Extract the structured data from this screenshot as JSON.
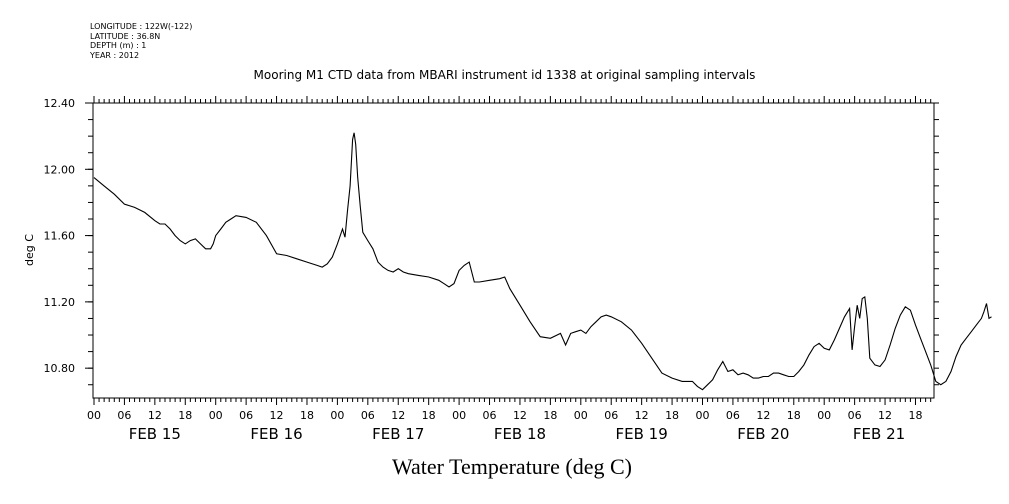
{
  "meta": {
    "longitude": "LONGITUDE : 122W(-122)",
    "latitude": "LATITUDE : 36.8N",
    "depth": "DEPTH (m) : 1",
    "year": "YEAR : 2012"
  },
  "chart_data": {
    "type": "line",
    "title": "Mooring M1 CTD data from MBARI instrument id 1338 at original sampling intervals",
    "xlabel": "Water Temperature (deg C)",
    "ylabel": "deg C",
    "ylim": [
      10.62,
      12.4
    ],
    "yticks": [
      10.8,
      11.2,
      11.6,
      12.0,
      12.4
    ],
    "ytick_labels": [
      "10.80",
      "11.20",
      "11.60",
      "12.00",
      "12.40"
    ],
    "xlim_hours": [
      0,
      165
    ],
    "hour_ticks": [
      "00",
      "06",
      "12",
      "18",
      "00",
      "06",
      "12",
      "18",
      "00",
      "06",
      "12",
      "18",
      "00",
      "06",
      "12",
      "18",
      "00",
      "06",
      "12",
      "18",
      "00",
      "06",
      "12",
      "18",
      "00",
      "06",
      "12",
      "18"
    ],
    "day_labels": [
      "FEB 15",
      "FEB 16",
      "FEB 17",
      "FEB 18",
      "FEB 19",
      "FEB 20",
      "FEB 21"
    ],
    "grid": false,
    "series": [
      {
        "color": "#000000",
        "points": [
          [
            0,
            11.95
          ],
          [
            2,
            11.9
          ],
          [
            4,
            11.85
          ],
          [
            6,
            11.79
          ],
          [
            8,
            11.77
          ],
          [
            10,
            11.74
          ],
          [
            12,
            11.69
          ],
          [
            13,
            11.67
          ],
          [
            14,
            11.67
          ],
          [
            15,
            11.64
          ],
          [
            16,
            11.6
          ],
          [
            17,
            11.57
          ],
          [
            18,
            11.55
          ],
          [
            19,
            11.57
          ],
          [
            20,
            11.58
          ],
          [
            21,
            11.55
          ],
          [
            22,
            11.52
          ],
          [
            23,
            11.52
          ],
          [
            23.5,
            11.55
          ],
          [
            24,
            11.6
          ],
          [
            25,
            11.64
          ],
          [
            26,
            11.68
          ],
          [
            27,
            11.7
          ],
          [
            28,
            11.72
          ],
          [
            30,
            11.71
          ],
          [
            32,
            11.68
          ],
          [
            34,
            11.6
          ],
          [
            36,
            11.49
          ],
          [
            38,
            11.48
          ],
          [
            40,
            11.46
          ],
          [
            42,
            11.44
          ],
          [
            44,
            11.42
          ],
          [
            45,
            11.41
          ],
          [
            46,
            11.43
          ],
          [
            47,
            11.47
          ],
          [
            48,
            11.55
          ],
          [
            49,
            11.64
          ],
          [
            49.5,
            11.59
          ],
          [
            50,
            11.75
          ],
          [
            50.5,
            11.9
          ],
          [
            51,
            12.18
          ],
          [
            51.3,
            12.22
          ],
          [
            51.6,
            12.15
          ],
          [
            52,
            11.95
          ],
          [
            52.5,
            11.78
          ],
          [
            53,
            11.62
          ],
          [
            54,
            11.57
          ],
          [
            55,
            11.52
          ],
          [
            56,
            11.44
          ],
          [
            57,
            11.41
          ],
          [
            58,
            11.39
          ],
          [
            59,
            11.38
          ],
          [
            60,
            11.4
          ],
          [
            61,
            11.38
          ],
          [
            62,
            11.37
          ],
          [
            64,
            11.36
          ],
          [
            66,
            11.35
          ],
          [
            68,
            11.33
          ],
          [
            69,
            11.31
          ],
          [
            70,
            11.29
          ],
          [
            71,
            11.31
          ],
          [
            72,
            11.39
          ],
          [
            73,
            11.42
          ],
          [
            74,
            11.44
          ],
          [
            75,
            11.32
          ],
          [
            76,
            11.32
          ],
          [
            78,
            11.33
          ],
          [
            80,
            11.34
          ],
          [
            81,
            11.35
          ],
          [
            82,
            11.28
          ],
          [
            84,
            11.18
          ],
          [
            86,
            11.08
          ],
          [
            88,
            10.99
          ],
          [
            90,
            10.98
          ],
          [
            92,
            11.01
          ],
          [
            93,
            10.94
          ],
          [
            94,
            11.01
          ],
          [
            95,
            11.02
          ],
          [
            96,
            11.03
          ],
          [
            97,
            11.01
          ],
          [
            98,
            11.05
          ],
          [
            99,
            11.08
          ],
          [
            100,
            11.11
          ],
          [
            101,
            11.12
          ],
          [
            102,
            11.11
          ],
          [
            104,
            11.08
          ],
          [
            106,
            11.03
          ],
          [
            108,
            10.95
          ],
          [
            110,
            10.86
          ],
          [
            112,
            10.77
          ],
          [
            114,
            10.74
          ],
          [
            116,
            10.72
          ],
          [
            118,
            10.72
          ],
          [
            119,
            10.69
          ],
          [
            120,
            10.67
          ],
          [
            121,
            10.7
          ],
          [
            122,
            10.73
          ],
          [
            123,
            10.79
          ],
          [
            124,
            10.84
          ],
          [
            125,
            10.78
          ],
          [
            126,
            10.79
          ],
          [
            127,
            10.76
          ],
          [
            128,
            10.77
          ],
          [
            129,
            10.76
          ],
          [
            130,
            10.74
          ],
          [
            131,
            10.74
          ],
          [
            132,
            10.75
          ],
          [
            133,
            10.75
          ],
          [
            134,
            10.77
          ],
          [
            135,
            10.77
          ],
          [
            136,
            10.76
          ],
          [
            137,
            10.75
          ],
          [
            138,
            10.75
          ],
          [
            139,
            10.78
          ],
          [
            140,
            10.82
          ],
          [
            141,
            10.88
          ],
          [
            142,
            10.93
          ],
          [
            143,
            10.95
          ],
          [
            144,
            10.92
          ],
          [
            145,
            10.91
          ],
          [
            146,
            10.97
          ],
          [
            147,
            11.04
          ],
          [
            148,
            11.11
          ],
          [
            149,
            11.16
          ],
          [
            149.5,
            10.91
          ],
          [
            150,
            11.05
          ],
          [
            150.5,
            11.18
          ],
          [
            151,
            11.1
          ],
          [
            151.5,
            11.22
          ],
          [
            152,
            11.23
          ],
          [
            152.5,
            11.1
          ],
          [
            153,
            10.86
          ],
          [
            154,
            10.82
          ],
          [
            155,
            10.81
          ],
          [
            156,
            10.85
          ],
          [
            157,
            10.94
          ],
          [
            158,
            11.04
          ],
          [
            159,
            11.12
          ],
          [
            160,
            11.17
          ],
          [
            161,
            11.15
          ],
          [
            162,
            11.06
          ],
          [
            163,
            10.98
          ],
          [
            164,
            10.9
          ],
          [
            165,
            10.82
          ],
          [
            166,
            10.72
          ],
          [
            167,
            10.7
          ],
          [
            168,
            10.72
          ],
          [
            169,
            10.78
          ],
          [
            170,
            10.87
          ],
          [
            171,
            10.94
          ],
          [
            172,
            10.98
          ],
          [
            173,
            11.02
          ],
          [
            174,
            11.06
          ],
          [
            175,
            11.1
          ],
          [
            175.5,
            11.14
          ],
          [
            176,
            11.19
          ],
          [
            176.5,
            11.1
          ],
          [
            177,
            11.11
          ]
        ]
      }
    ]
  }
}
